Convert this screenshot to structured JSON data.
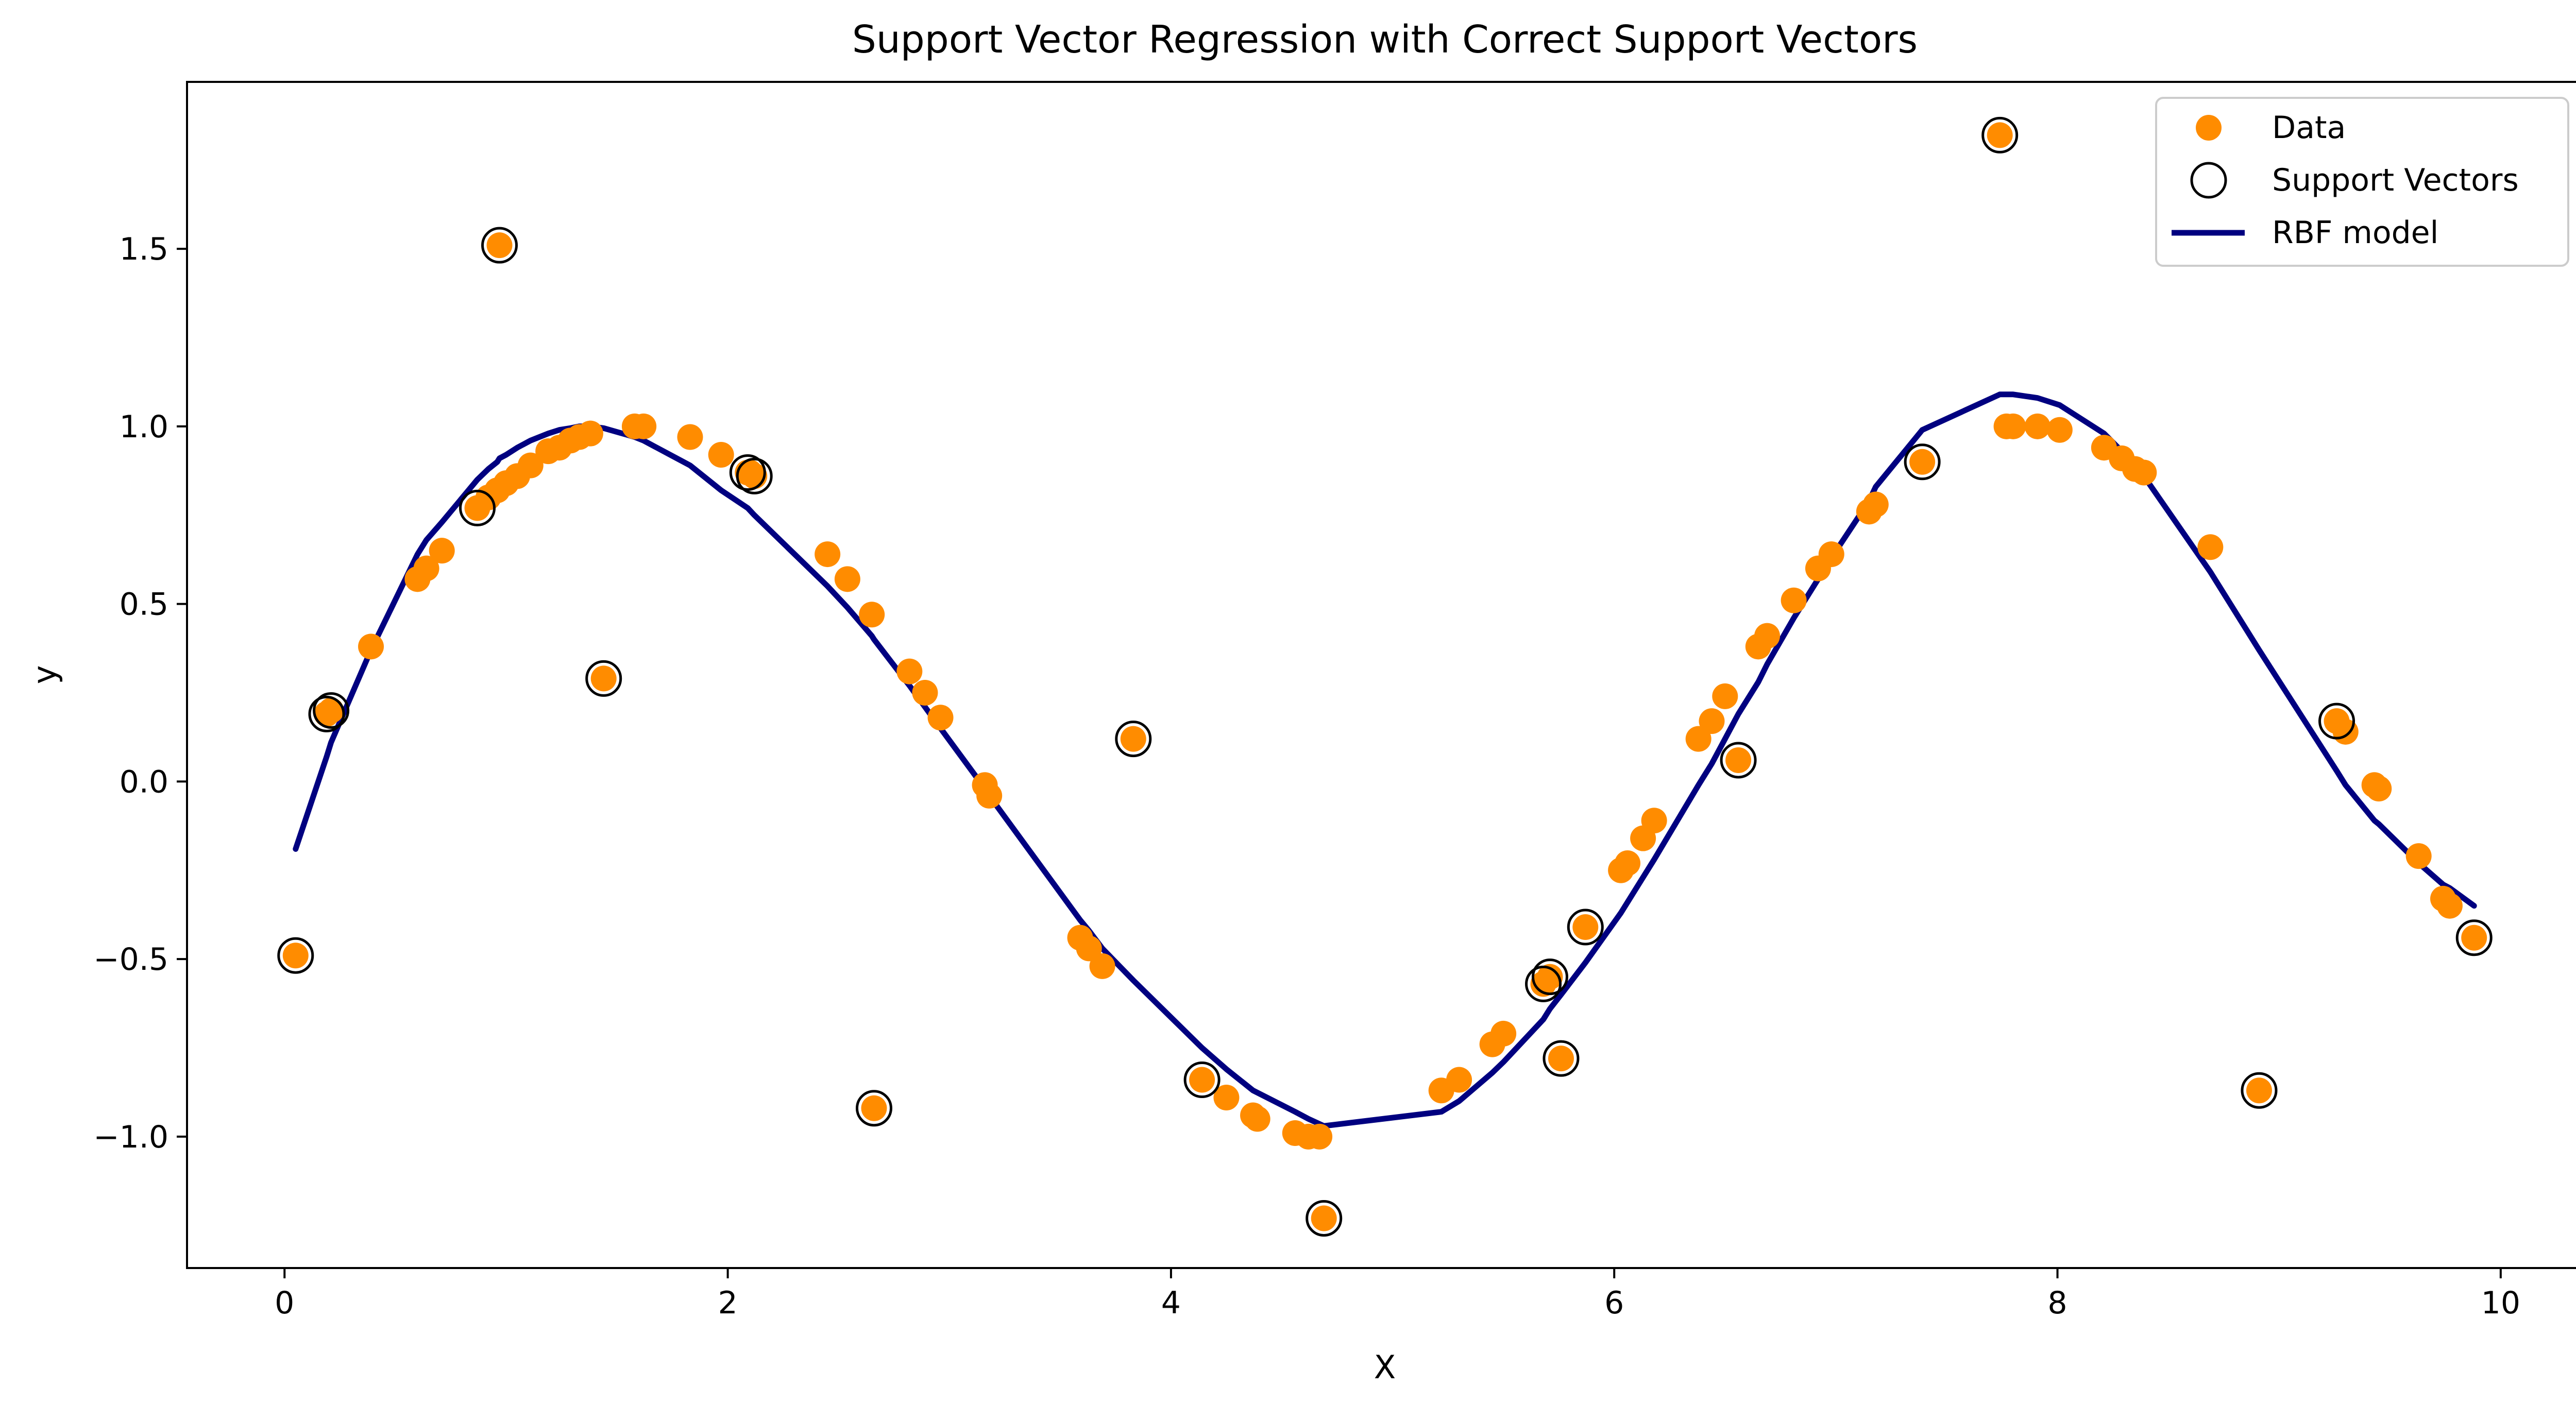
{
  "chart_data": {
    "type": "scatter",
    "title": "Support Vector Regression with Correct Support Vectors",
    "xlabel": "X",
    "ylabel": "y",
    "xlim": [
      -0.44,
      10.37
    ],
    "ylim": [
      -1.37,
      1.97
    ],
    "x_ticks": [
      0,
      2,
      4,
      6,
      8,
      10
    ],
    "x_tick_labels": [
      "0",
      "2",
      "4",
      "6",
      "8",
      "10"
    ],
    "y_ticks": [
      -1.0,
      -0.5,
      0.0,
      0.5,
      1.0,
      1.5
    ],
    "y_tick_labels": [
      "−1.0",
      "−0.5",
      "0.0",
      "0.5",
      "1.0",
      "1.5"
    ],
    "grid": false,
    "legend_position": "top-right",
    "legend": [
      "Data",
      "Support Vectors",
      "RBF model"
    ],
    "colors": {
      "data": "#ff8c00",
      "support_vectors": "#000000",
      "model": "#000080"
    },
    "series": [
      {
        "name": "Data",
        "kind": "scatter",
        "points": [
          [
            0.05,
            -0.49
          ],
          [
            0.19,
            0.19
          ],
          [
            0.21,
            0.2
          ],
          [
            0.39,
            0.38
          ],
          [
            0.6,
            0.57
          ],
          [
            0.64,
            0.6
          ],
          [
            0.71,
            0.65
          ],
          [
            0.87,
            0.77
          ],
          [
            0.92,
            0.8
          ],
          [
            0.96,
            0.82
          ],
          [
            0.97,
            1.51
          ],
          [
            1.0,
            0.84
          ],
          [
            1.05,
            0.86
          ],
          [
            1.11,
            0.89
          ],
          [
            1.19,
            0.93
          ],
          [
            1.24,
            0.94
          ],
          [
            1.29,
            0.96
          ],
          [
            1.33,
            0.97
          ],
          [
            1.38,
            0.98
          ],
          [
            1.44,
            0.29
          ],
          [
            1.58,
            1.0
          ],
          [
            1.62,
            1.0
          ],
          [
            1.83,
            0.97
          ],
          [
            1.97,
            0.92
          ],
          [
            2.09,
            0.87
          ],
          [
            2.1,
            0.87
          ],
          [
            2.12,
            0.86
          ],
          [
            2.45,
            0.64
          ],
          [
            2.54,
            0.57
          ],
          [
            2.65,
            0.47
          ],
          [
            2.66,
            -0.92
          ],
          [
            2.82,
            0.31
          ],
          [
            2.89,
            0.25
          ],
          [
            2.96,
            0.18
          ],
          [
            3.16,
            -0.01
          ],
          [
            3.18,
            -0.04
          ],
          [
            3.59,
            -0.44
          ],
          [
            3.63,
            -0.47
          ],
          [
            3.69,
            -0.52
          ],
          [
            3.83,
            0.12
          ],
          [
            4.14,
            -0.84
          ],
          [
            4.25,
            -0.89
          ],
          [
            4.37,
            -0.94
          ],
          [
            4.39,
            -0.95
          ],
          [
            4.56,
            -0.99
          ],
          [
            4.62,
            -1.0
          ],
          [
            4.67,
            -1.0
          ],
          [
            4.69,
            -1.23
          ],
          [
            5.22,
            -0.87
          ],
          [
            5.3,
            -0.84
          ],
          [
            5.45,
            -0.74
          ],
          [
            5.5,
            -0.71
          ],
          [
            5.68,
            -0.57
          ],
          [
            5.71,
            -0.55
          ],
          [
            5.76,
            -0.78
          ],
          [
            5.87,
            -0.41
          ],
          [
            6.03,
            -0.25
          ],
          [
            6.06,
            -0.23
          ],
          [
            6.13,
            -0.16
          ],
          [
            6.18,
            -0.11
          ],
          [
            6.38,
            0.12
          ],
          [
            6.44,
            0.17
          ],
          [
            6.5,
            0.24
          ],
          [
            6.56,
            0.06
          ],
          [
            6.65,
            0.38
          ],
          [
            6.69,
            0.41
          ],
          [
            6.81,
            0.51
          ],
          [
            6.92,
            0.6
          ],
          [
            6.98,
            0.64
          ],
          [
            7.15,
            0.76
          ],
          [
            7.18,
            0.78
          ],
          [
            7.39,
            0.9
          ],
          [
            7.74,
            1.82
          ],
          [
            7.77,
            1.0
          ],
          [
            7.8,
            1.0
          ],
          [
            7.91,
            1.0
          ],
          [
            8.01,
            0.99
          ],
          [
            8.21,
            0.94
          ],
          [
            8.29,
            0.91
          ],
          [
            8.35,
            0.88
          ],
          [
            8.39,
            0.87
          ],
          [
            8.69,
            0.66
          ],
          [
            8.91,
            -0.87
          ],
          [
            9.26,
            0.17
          ],
          [
            9.3,
            0.14
          ],
          [
            9.43,
            -0.01
          ],
          [
            9.45,
            -0.02
          ],
          [
            9.63,
            -0.21
          ],
          [
            9.74,
            -0.33
          ],
          [
            9.77,
            -0.35
          ],
          [
            9.88,
            -0.44
          ]
        ]
      },
      {
        "name": "Support Vectors",
        "kind": "scatter",
        "points": [
          [
            0.05,
            -0.49
          ],
          [
            0.19,
            0.19
          ],
          [
            0.21,
            0.2
          ],
          [
            0.87,
            0.77
          ],
          [
            0.97,
            1.51
          ],
          [
            1.44,
            0.29
          ],
          [
            2.09,
            0.87
          ],
          [
            2.12,
            0.86
          ],
          [
            2.66,
            -0.92
          ],
          [
            3.83,
            0.12
          ],
          [
            4.14,
            -0.84
          ],
          [
            4.69,
            -1.23
          ],
          [
            5.68,
            -0.57
          ],
          [
            5.71,
            -0.55
          ],
          [
            5.76,
            -0.78
          ],
          [
            5.87,
            -0.41
          ],
          [
            6.56,
            0.06
          ],
          [
            7.39,
            0.9
          ],
          [
            7.74,
            1.82
          ],
          [
            8.91,
            -0.87
          ],
          [
            9.26,
            0.17
          ],
          [
            9.88,
            -0.44
          ]
        ]
      },
      {
        "name": "RBF model",
        "kind": "line",
        "points": [
          [
            0.05,
            -0.19
          ],
          [
            0.19,
            0.07
          ],
          [
            0.21,
            0.11
          ],
          [
            0.39,
            0.37
          ],
          [
            0.6,
            0.64
          ],
          [
            0.64,
            0.68
          ],
          [
            0.71,
            0.73
          ],
          [
            0.87,
            0.85
          ],
          [
            0.92,
            0.88
          ],
          [
            0.96,
            0.9
          ],
          [
            0.97,
            0.91
          ],
          [
            1.0,
            0.92
          ],
          [
            1.05,
            0.94
          ],
          [
            1.11,
            0.96
          ],
          [
            1.19,
            0.98
          ],
          [
            1.24,
            0.99
          ],
          [
            1.29,
            0.995
          ],
          [
            1.33,
            1.0
          ],
          [
            1.38,
            1.0
          ],
          [
            1.44,
            0.995
          ],
          [
            1.58,
            0.97
          ],
          [
            1.62,
            0.96
          ],
          [
            1.83,
            0.89
          ],
          [
            1.97,
            0.82
          ],
          [
            2.09,
            0.77
          ],
          [
            2.12,
            0.75
          ],
          [
            2.45,
            0.55
          ],
          [
            2.54,
            0.49
          ],
          [
            2.65,
            0.41
          ],
          [
            2.66,
            0.4
          ],
          [
            2.82,
            0.27
          ],
          [
            2.89,
            0.21
          ],
          [
            2.96,
            0.15
          ],
          [
            3.16,
            -0.02
          ],
          [
            3.18,
            -0.04
          ],
          [
            3.59,
            -0.39
          ],
          [
            3.63,
            -0.42
          ],
          [
            3.69,
            -0.47
          ],
          [
            3.83,
            -0.56
          ],
          [
            4.14,
            -0.75
          ],
          [
            4.25,
            -0.81
          ],
          [
            4.37,
            -0.87
          ],
          [
            4.56,
            -0.93
          ],
          [
            4.62,
            -0.95
          ],
          [
            4.69,
            -0.97
          ],
          [
            5.22,
            -0.93
          ],
          [
            5.3,
            -0.9
          ],
          [
            5.45,
            -0.82
          ],
          [
            5.5,
            -0.79
          ],
          [
            5.68,
            -0.67
          ],
          [
            5.71,
            -0.64
          ],
          [
            5.76,
            -0.6
          ],
          [
            5.87,
            -0.51
          ],
          [
            6.03,
            -0.37
          ],
          [
            6.06,
            -0.34
          ],
          [
            6.13,
            -0.27
          ],
          [
            6.18,
            -0.22
          ],
          [
            6.38,
            -0.01
          ],
          [
            6.44,
            0.05
          ],
          [
            6.5,
            0.12
          ],
          [
            6.56,
            0.19
          ],
          [
            6.65,
            0.28
          ],
          [
            6.69,
            0.33
          ],
          [
            6.81,
            0.46
          ],
          [
            6.92,
            0.57
          ],
          [
            6.98,
            0.63
          ],
          [
            7.15,
            0.79
          ],
          [
            7.18,
            0.83
          ],
          [
            7.39,
            0.99
          ],
          [
            7.74,
            1.09
          ],
          [
            7.77,
            1.09
          ],
          [
            7.8,
            1.09
          ],
          [
            7.91,
            1.08
          ],
          [
            8.01,
            1.06
          ],
          [
            8.21,
            0.98
          ],
          [
            8.29,
            0.93
          ],
          [
            8.35,
            0.89
          ],
          [
            8.39,
            0.86
          ],
          [
            8.69,
            0.59
          ],
          [
            8.91,
            0.37
          ],
          [
            9.26,
            0.03
          ],
          [
            9.3,
            -0.01
          ],
          [
            9.43,
            -0.11
          ],
          [
            9.45,
            -0.12
          ],
          [
            9.63,
            -0.23
          ],
          [
            9.74,
            -0.29
          ],
          [
            9.77,
            -0.3
          ],
          [
            9.88,
            -0.35
          ]
        ]
      }
    ]
  }
}
